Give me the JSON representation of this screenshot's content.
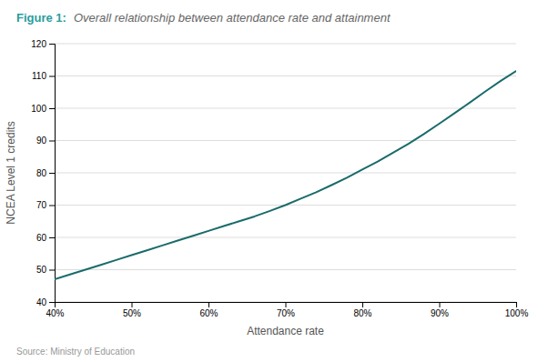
{
  "chart_data": {
    "type": "line",
    "title": "Figure 1:",
    "subtitle": "Overall relationship between attendance rate and attainment",
    "x_label": "Attendance rate",
    "y_label": "NCEA Level 1 credits",
    "annotations": [
      "Source: Ministry of Education"
    ],
    "x": [
      0.4,
      0.42,
      0.44,
      0.46,
      0.48,
      0.5,
      0.52,
      0.54,
      0.56,
      0.58,
      0.6,
      0.62,
      0.64,
      0.66,
      0.68,
      0.7,
      0.72,
      0.74,
      0.76,
      0.78,
      0.8,
      0.82,
      0.84,
      0.86,
      0.88,
      0.9,
      0.92,
      0.94,
      0.96,
      0.98,
      1.0
    ],
    "values": [
      47.0,
      48.5,
      50.0,
      51.5,
      53.0,
      54.5,
      56.0,
      57.5,
      59.0,
      60.5,
      62.0,
      63.5,
      65.0,
      66.5,
      68.2,
      70.0,
      72.0,
      74.0,
      76.2,
      78.5,
      81.0,
      83.5,
      86.2,
      89.0,
      92.0,
      95.2,
      98.5,
      101.8,
      105.2,
      108.5,
      111.5
    ],
    "color": "#1a6b6b",
    "xlim": [
      0.4,
      1.0
    ],
    "ylim": [
      40,
      120
    ],
    "xticks": [
      {
        "value": 0.4,
        "label": "40%"
      },
      {
        "value": 0.5,
        "label": "50%"
      },
      {
        "value": 0.6,
        "label": "60%"
      },
      {
        "value": 0.7,
        "label": "70%"
      },
      {
        "value": 0.8,
        "label": "80%"
      },
      {
        "value": 0.9,
        "label": "90%"
      },
      {
        "value": 1.0,
        "label": "100%"
      }
    ],
    "yticks": [
      40,
      50,
      60,
      70,
      80,
      90,
      100,
      110,
      120
    ],
    "grid": true
  }
}
